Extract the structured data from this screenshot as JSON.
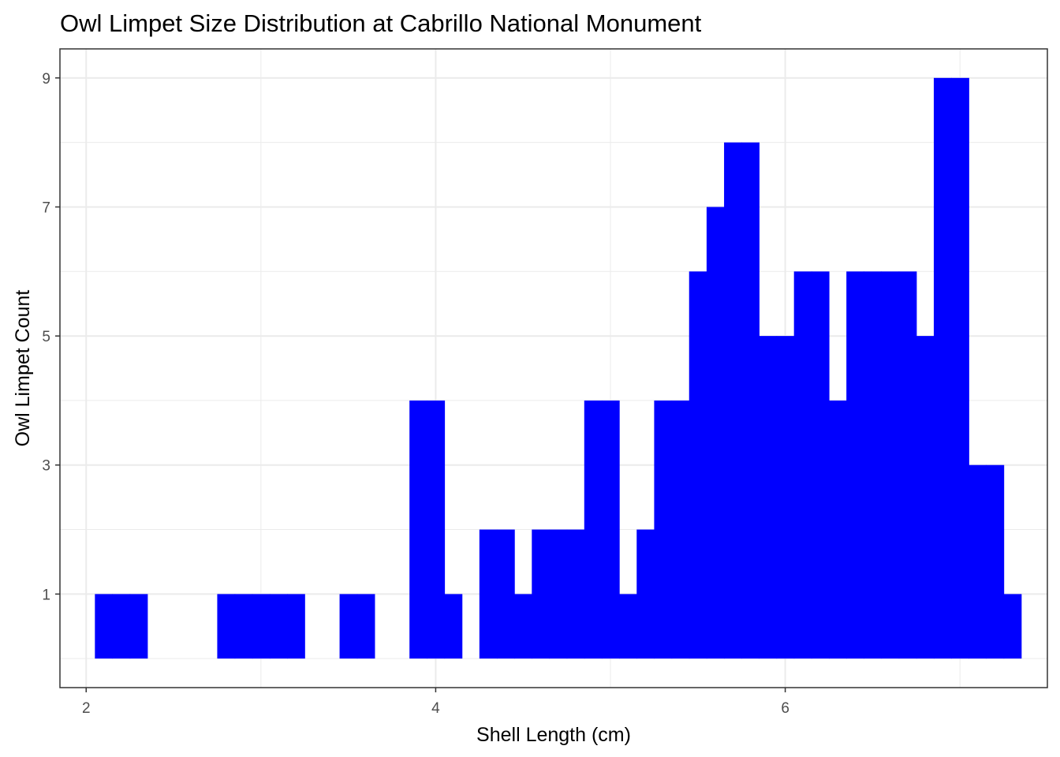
{
  "chart_data": {
    "type": "bar",
    "title": "Owl Limpet Size Distribution at Cabrillo National Monument",
    "xlabel": "Shell Length (cm)",
    "ylabel": "Owl Limpet Count",
    "xlim": [
      1.85,
      7.5
    ],
    "ylim": [
      -0.45,
      9.45
    ],
    "xticks": [
      2,
      4,
      6
    ],
    "yticks": [
      1,
      3,
      5,
      7,
      9
    ],
    "bin_width": 0.1,
    "bar_color": "#0000FF",
    "grid": true,
    "bins": [
      {
        "x": 2.1,
        "count": 1
      },
      {
        "x": 2.2,
        "count": 1
      },
      {
        "x": 2.3,
        "count": 1
      },
      {
        "x": 2.8,
        "count": 1
      },
      {
        "x": 2.9,
        "count": 1
      },
      {
        "x": 3.0,
        "count": 1
      },
      {
        "x": 3.1,
        "count": 1
      },
      {
        "x": 3.2,
        "count": 1
      },
      {
        "x": 3.5,
        "count": 1
      },
      {
        "x": 3.6,
        "count": 1
      },
      {
        "x": 3.9,
        "count": 4
      },
      {
        "x": 4.0,
        "count": 4
      },
      {
        "x": 4.1,
        "count": 1
      },
      {
        "x": 4.3,
        "count": 2
      },
      {
        "x": 4.4,
        "count": 2
      },
      {
        "x": 4.5,
        "count": 1
      },
      {
        "x": 4.6,
        "count": 2
      },
      {
        "x": 4.7,
        "count": 2
      },
      {
        "x": 4.8,
        "count": 2
      },
      {
        "x": 4.9,
        "count": 4
      },
      {
        "x": 5.0,
        "count": 4
      },
      {
        "x": 5.1,
        "count": 1
      },
      {
        "x": 5.2,
        "count": 2
      },
      {
        "x": 5.3,
        "count": 4
      },
      {
        "x": 5.4,
        "count": 4
      },
      {
        "x": 5.5,
        "count": 6
      },
      {
        "x": 5.6,
        "count": 7
      },
      {
        "x": 5.7,
        "count": 8
      },
      {
        "x": 5.8,
        "count": 8
      },
      {
        "x": 5.9,
        "count": 5
      },
      {
        "x": 6.0,
        "count": 5
      },
      {
        "x": 6.1,
        "count": 6
      },
      {
        "x": 6.2,
        "count": 6
      },
      {
        "x": 6.3,
        "count": 4
      },
      {
        "x": 6.4,
        "count": 6
      },
      {
        "x": 6.5,
        "count": 6
      },
      {
        "x": 6.6,
        "count": 6
      },
      {
        "x": 6.7,
        "count": 6
      },
      {
        "x": 6.8,
        "count": 5
      },
      {
        "x": 6.9,
        "count": 9
      },
      {
        "x": 7.0,
        "count": 9
      },
      {
        "x": 7.1,
        "count": 3
      },
      {
        "x": 7.2,
        "count": 3
      },
      {
        "x": 7.3,
        "count": 1
      }
    ]
  }
}
